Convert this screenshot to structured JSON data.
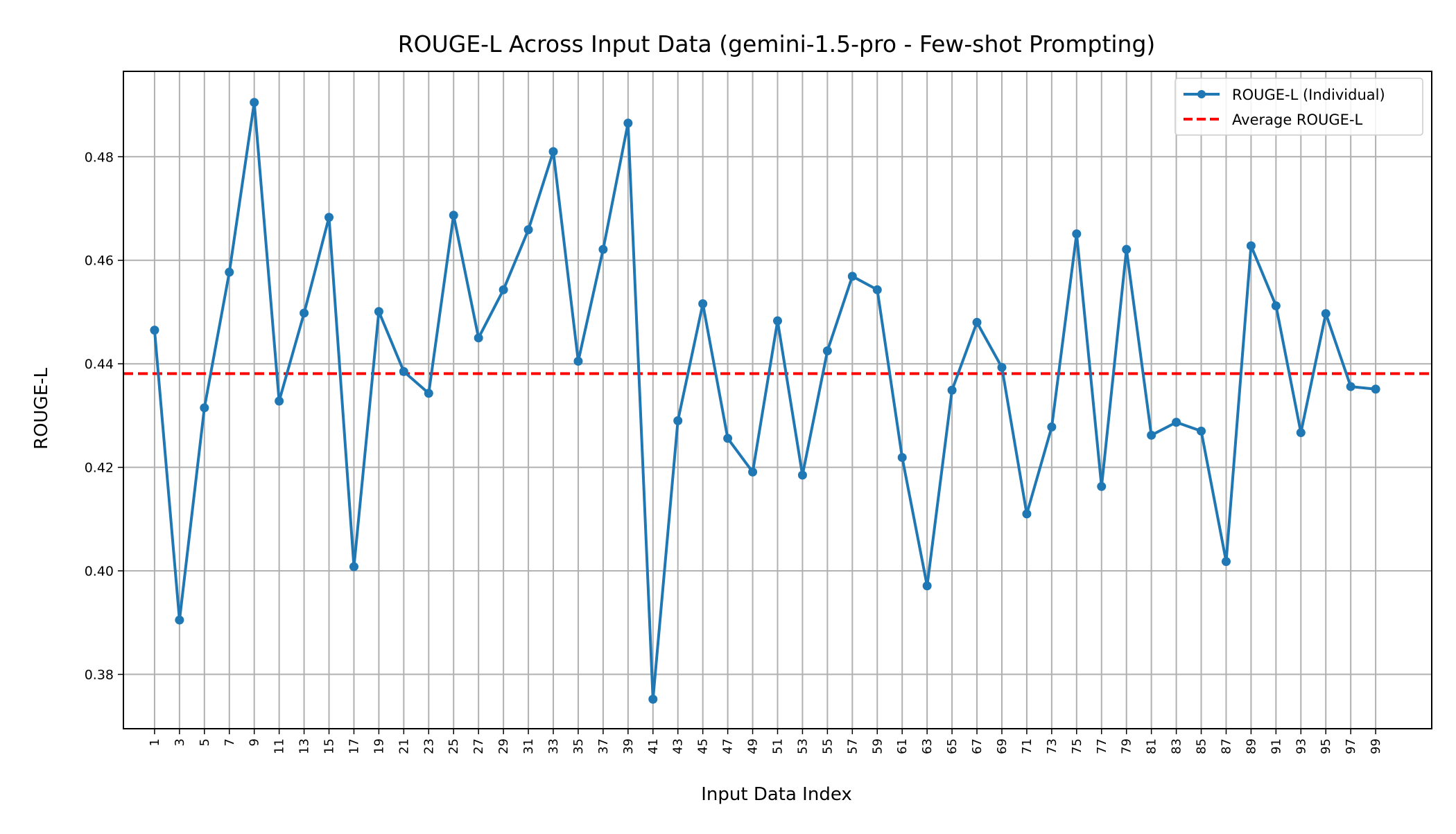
{
  "chart_data": {
    "type": "line",
    "title": "ROUGE-L Across Input Data (gemini-1.5-pro - Few-shot Prompting)",
    "xlabel": "Input Data Index",
    "ylabel": "ROUGE-L",
    "xlim": [
      -1.5,
      103.5
    ],
    "ylim": [
      0.3695,
      0.4965
    ],
    "grid": true,
    "legend_position": "top-right",
    "x_ticks": [
      1,
      3,
      5,
      7,
      9,
      11,
      13,
      15,
      17,
      19,
      21,
      23,
      25,
      27,
      29,
      31,
      33,
      35,
      37,
      39,
      41,
      43,
      45,
      47,
      49,
      51,
      53,
      55,
      57,
      59,
      61,
      63,
      65,
      67,
      69,
      71,
      73,
      75,
      77,
      79,
      81,
      83,
      85,
      87,
      89,
      91,
      93,
      95,
      97,
      99
    ],
    "y_ticks": [
      0.38,
      0.4,
      0.42,
      0.44,
      0.46,
      0.48
    ],
    "y_tick_labels": [
      "0.38",
      "0.40",
      "0.42",
      "0.44",
      "0.46",
      "0.48"
    ],
    "series": [
      {
        "name": "ROUGE-L (Individual)",
        "color": "#1f77b4",
        "style": "solid-with-markers",
        "x": [
          1,
          3,
          5,
          7,
          9,
          11,
          13,
          15,
          17,
          19,
          21,
          23,
          25,
          27,
          29,
          31,
          33,
          35,
          37,
          39,
          41,
          43,
          45,
          47,
          49,
          51,
          53,
          55,
          57,
          59,
          61,
          63,
          65,
          67,
          69,
          71,
          73,
          75,
          77,
          79,
          81,
          83,
          85,
          87,
          89,
          91,
          93,
          95,
          97,
          99
        ],
        "values": [
          0.4465,
          0.3905,
          0.4315,
          0.4577,
          0.4905,
          0.4328,
          0.4498,
          0.4683,
          0.4008,
          0.4501,
          0.4385,
          0.4343,
          0.4687,
          0.445,
          0.4543,
          0.4659,
          0.481,
          0.4405,
          0.4621,
          0.4865,
          0.3752,
          0.429,
          0.4516,
          0.4256,
          0.4191,
          0.4483,
          0.4185,
          0.4425,
          0.4569,
          0.4543,
          0.4219,
          0.3971,
          0.4349,
          0.448,
          0.4393,
          0.411,
          0.4278,
          0.4651,
          0.4163,
          0.4621,
          0.4262,
          0.4287,
          0.427,
          0.4018,
          0.4628,
          0.4512,
          0.4267,
          0.4497,
          0.4356,
          0.4351
        ]
      },
      {
        "name": "Average ROUGE-L",
        "color": "#ff0000",
        "style": "dashed",
        "value": 0.4381
      }
    ]
  }
}
